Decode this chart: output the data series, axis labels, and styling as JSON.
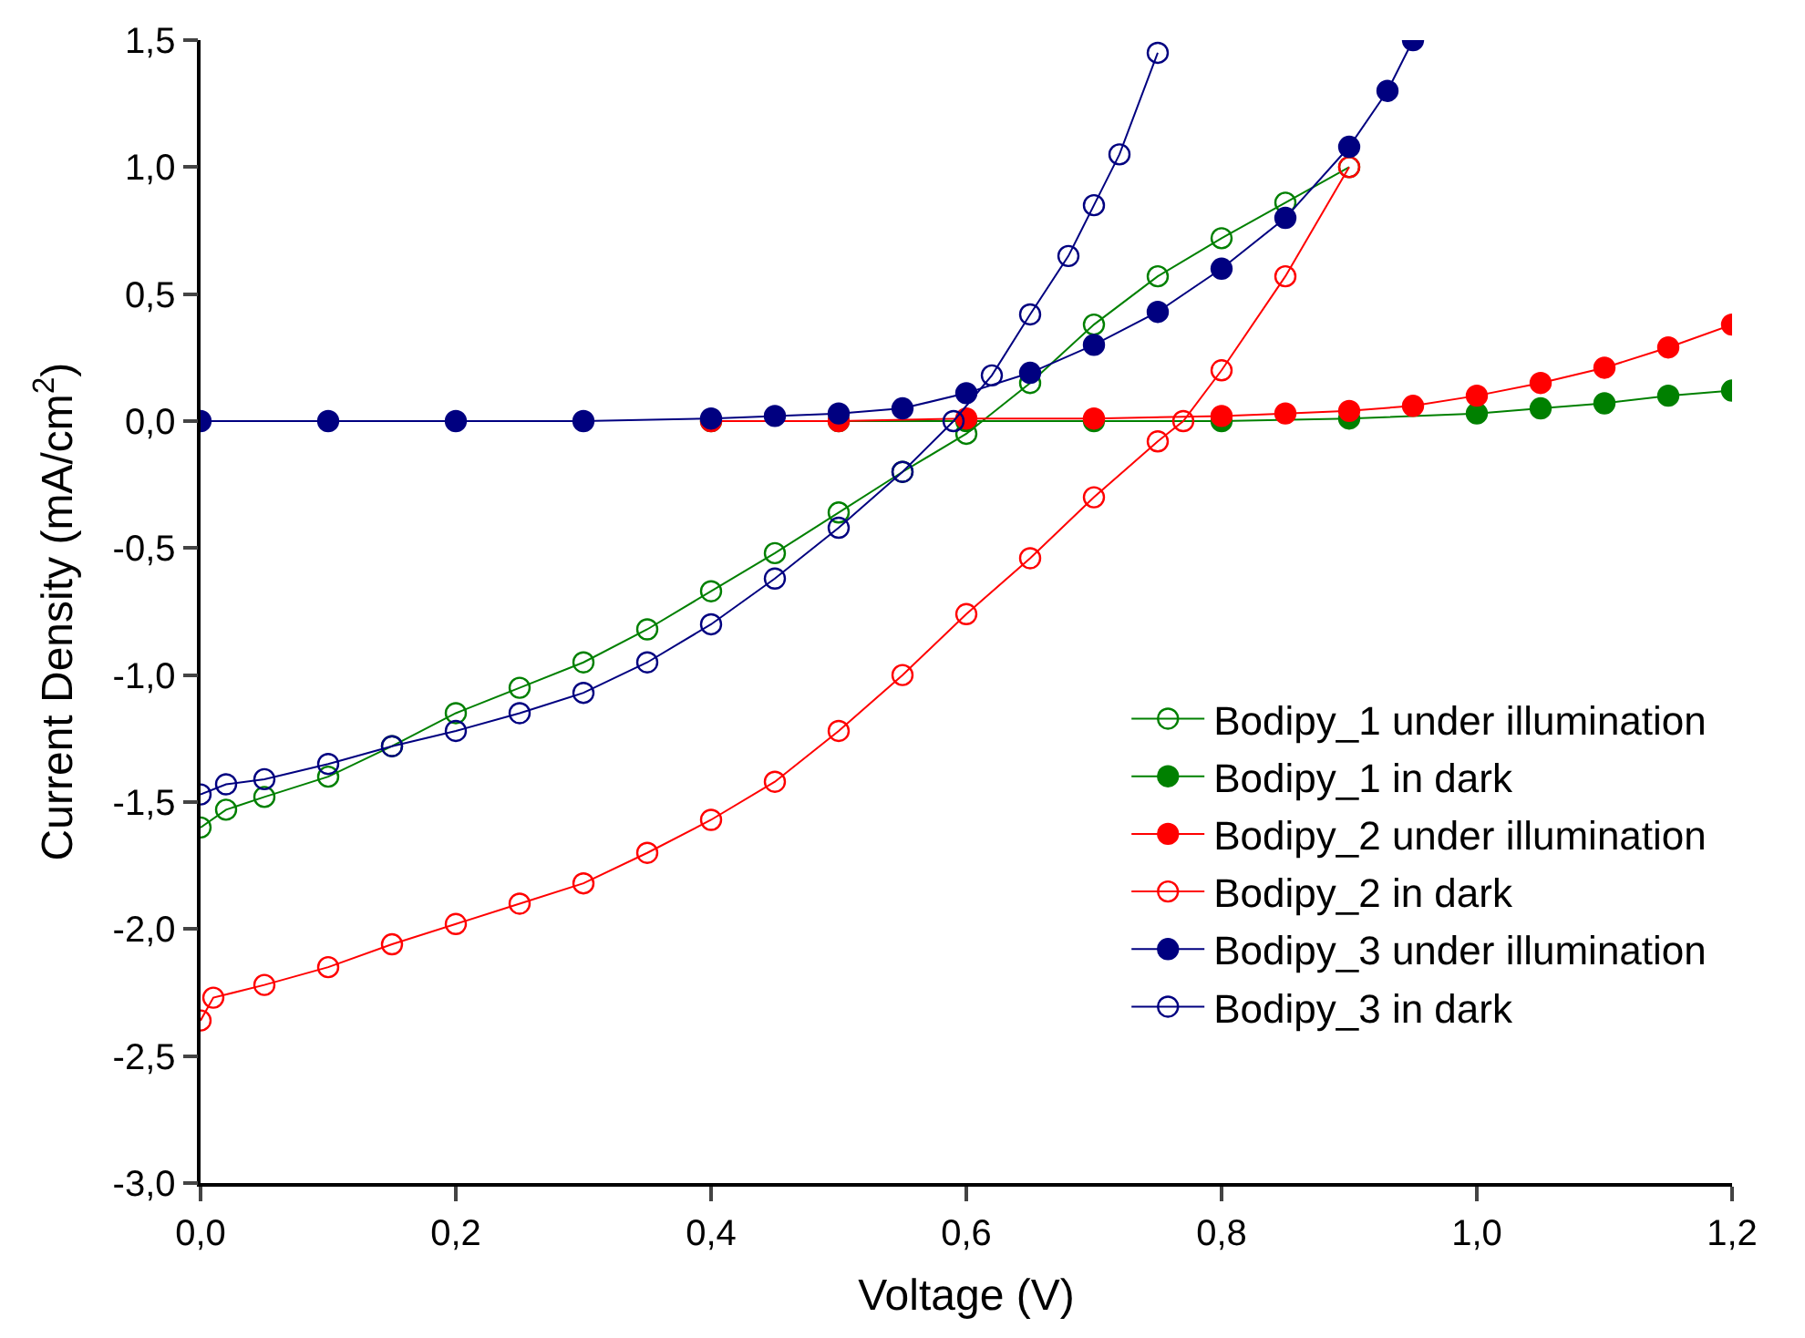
{
  "chart_data": {
    "type": "line",
    "xlabel": "Voltage (V)",
    "ylabel": "Current Density (mA/cm$^{2}$)",
    "xlim": [
      0,
      1.2
    ],
    "ylim": [
      -3.0,
      1.5
    ],
    "xticks": [
      {
        "value": 0,
        "label": "0,0"
      },
      {
        "value": 0.2,
        "label": "0,2"
      },
      {
        "value": 0.4,
        "label": "0,4"
      },
      {
        "value": 0.6,
        "label": "0,6"
      },
      {
        "value": 0.8,
        "label": "0,8"
      },
      {
        "value": 1.0,
        "label": "1,0"
      },
      {
        "value": 1.2,
        "label": "1,2"
      }
    ],
    "yticks": [
      {
        "value": -3.0,
        "label": "-3,0"
      },
      {
        "value": -2.5,
        "label": "-2,5"
      },
      {
        "value": -2.0,
        "label": "-2,0"
      },
      {
        "value": -1.5,
        "label": "-1,5"
      },
      {
        "value": -1.0,
        "label": "-1,0"
      },
      {
        "value": -0.5,
        "label": "-0,5"
      },
      {
        "value": 0,
        "label": "0,0"
      },
      {
        "value": 0.5,
        "label": "0,5"
      },
      {
        "value": 1.0,
        "label": "1,0"
      },
      {
        "value": 1.5,
        "label": "1,5"
      }
    ],
    "legend": "right",
    "line_style": "solid",
    "series": [
      {
        "name": "Bodipy_1 under illumination",
        "color": "#008000",
        "marker": "circle-open",
        "x": [
          0,
          0.02,
          0.05,
          0.1,
          0.15,
          0.2,
          0.25,
          0.3,
          0.35,
          0.4,
          0.45,
          0.5,
          0.55,
          0.6,
          0.65,
          0.7,
          0.75,
          0.8,
          0.85,
          0.9
        ],
        "values": [
          -1.6,
          -1.53,
          -1.48,
          -1.4,
          -1.28,
          -1.15,
          -1.05,
          -0.95,
          -0.82,
          -0.67,
          -0.52,
          -0.36,
          -0.2,
          -0.05,
          0.15,
          0.38,
          0.57,
          0.72,
          0.86,
          1.0
        ]
      },
      {
        "name": "Bodipy_1 in dark",
        "color": "#008000",
        "marker": "circle",
        "x": [
          0.4,
          0.5,
          0.6,
          0.7,
          0.8,
          0.9,
          1.0,
          1.05,
          1.1,
          1.15,
          1.2
        ],
        "values": [
          0,
          0,
          0,
          0,
          0.0,
          0.01,
          0.03,
          0.05,
          0.07,
          0.1,
          0.12
        ]
      },
      {
        "name": "Bodipy_2 under illumination",
        "color": "#ff0000",
        "marker": "circle",
        "x": [
          0.4,
          0.5,
          0.6,
          0.7,
          0.8,
          0.85,
          0.9,
          0.95,
          1.0,
          1.05,
          1.1,
          1.15,
          1.2
        ],
        "values": [
          0,
          0,
          0.01,
          0.01,
          0.02,
          0.03,
          0.04,
          0.06,
          0.1,
          0.15,
          0.21,
          0.29,
          0.38
        ]
      },
      {
        "name": "Bodipy_2 in dark",
        "color": "#ff0000",
        "marker": "circle-open",
        "x": [
          0,
          0.01,
          0.05,
          0.1,
          0.15,
          0.2,
          0.25,
          0.3,
          0.35,
          0.4,
          0.45,
          0.5,
          0.55,
          0.6,
          0.65,
          0.7,
          0.75,
          0.77,
          0.8,
          0.85,
          0.9
        ],
        "values": [
          -2.36,
          -2.27,
          -2.22,
          -2.15,
          -2.06,
          -1.98,
          -1.9,
          -1.82,
          -1.7,
          -1.57,
          -1.42,
          -1.22,
          -1.0,
          -0.76,
          -0.54,
          -0.3,
          -0.08,
          0.0,
          0.2,
          0.57,
          1.0
        ]
      },
      {
        "name": "Bodipy_3 under illumination",
        "color": "#000080",
        "marker": "circle",
        "x": [
          0,
          0.1,
          0.2,
          0.3,
          0.4,
          0.45,
          0.5,
          0.55,
          0.6,
          0.65,
          0.7,
          0.75,
          0.8,
          0.85,
          0.9,
          0.93,
          0.95
        ],
        "values": [
          0,
          0,
          0,
          0,
          0.01,
          0.02,
          0.03,
          0.05,
          0.11,
          0.19,
          0.3,
          0.43,
          0.6,
          0.8,
          1.08,
          1.3,
          1.5
        ]
      },
      {
        "name": "Bodipy_3 in dark",
        "color": "#000080",
        "marker": "circle-open",
        "x": [
          0,
          0.02,
          0.05,
          0.1,
          0.15,
          0.2,
          0.25,
          0.3,
          0.35,
          0.4,
          0.45,
          0.5,
          0.55,
          0.59,
          0.62,
          0.65,
          0.68,
          0.7,
          0.72,
          0.75
        ],
        "values": [
          -1.47,
          -1.43,
          -1.41,
          -1.35,
          -1.28,
          -1.22,
          -1.15,
          -1.07,
          -0.95,
          -0.8,
          -0.62,
          -0.42,
          -0.2,
          0.0,
          0.18,
          0.42,
          0.65,
          0.85,
          1.05,
          1.45
        ]
      }
    ]
  }
}
